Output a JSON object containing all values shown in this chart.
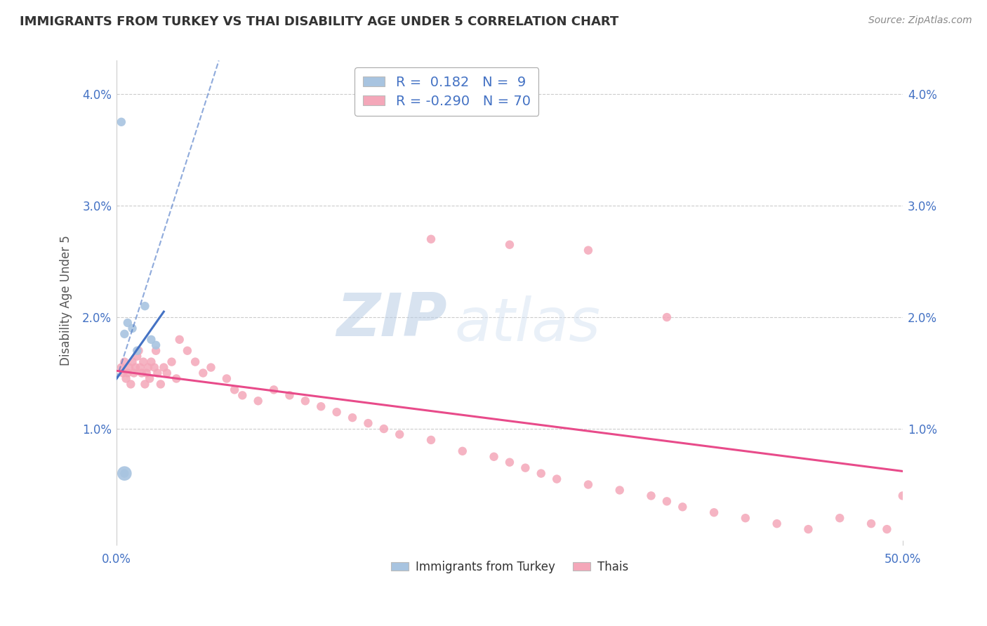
{
  "title": "IMMIGRANTS FROM TURKEY VS THAI DISABILITY AGE UNDER 5 CORRELATION CHART",
  "source": "Source: ZipAtlas.com",
  "ylabel": "Disability Age Under 5",
  "y_ticks": [
    0.0,
    1.0,
    2.0,
    3.0,
    4.0
  ],
  "y_tick_labels": [
    "",
    "1.0%",
    "2.0%",
    "3.0%",
    "4.0%"
  ],
  "x_lim": [
    0.0,
    50.0
  ],
  "y_lim": [
    0.0,
    4.3
  ],
  "legend_R1": "0.182",
  "legend_N1": "9",
  "legend_R2": "-0.290",
  "legend_N2": "70",
  "turkey_color": "#a8c4e0",
  "thai_color": "#f4a7b9",
  "turkey_line_color": "#4472c4",
  "thai_line_color": "#e84b8a",
  "watermark_zip": "ZIP",
  "watermark_atlas": "atlas",
  "turkey_x": [
    0.3,
    0.5,
    0.7,
    1.0,
    1.3,
    1.8,
    2.2,
    2.5,
    0.5
  ],
  "turkey_y": [
    3.75,
    1.85,
    1.95,
    1.9,
    1.7,
    2.1,
    1.8,
    1.75,
    0.6
  ],
  "turkey_dot_sizes": [
    80,
    80,
    80,
    80,
    80,
    80,
    80,
    80,
    200
  ],
  "thai_x": [
    0.3,
    0.4,
    0.5,
    0.6,
    0.7,
    0.8,
    0.9,
    1.0,
    1.1,
    1.2,
    1.3,
    1.4,
    1.5,
    1.6,
    1.7,
    1.8,
    1.9,
    2.0,
    2.1,
    2.2,
    2.4,
    2.5,
    2.6,
    2.8,
    3.0,
    3.2,
    3.5,
    3.8,
    4.0,
    4.5,
    5.0,
    5.5,
    6.0,
    7.0,
    7.5,
    8.0,
    9.0,
    10.0,
    11.0,
    12.0,
    13.0,
    14.0,
    15.0,
    16.0,
    17.0,
    18.0,
    20.0,
    22.0,
    24.0,
    25.0,
    26.0,
    27.0,
    28.0,
    30.0,
    32.0,
    34.0,
    35.0,
    36.0,
    38.0,
    40.0,
    42.0,
    44.0,
    46.0,
    48.0,
    49.0,
    50.0,
    20.0,
    25.0,
    30.0,
    35.0
  ],
  "thai_y": [
    1.55,
    1.5,
    1.6,
    1.45,
    1.5,
    1.55,
    1.4,
    1.6,
    1.5,
    1.55,
    1.65,
    1.7,
    1.55,
    1.5,
    1.6,
    1.4,
    1.5,
    1.55,
    1.45,
    1.6,
    1.55,
    1.7,
    1.5,
    1.4,
    1.55,
    1.5,
    1.6,
    1.45,
    1.8,
    1.7,
    1.6,
    1.5,
    1.55,
    1.45,
    1.35,
    1.3,
    1.25,
    1.35,
    1.3,
    1.25,
    1.2,
    1.15,
    1.1,
    1.05,
    1.0,
    0.95,
    0.9,
    0.8,
    0.75,
    0.7,
    0.65,
    0.6,
    0.55,
    0.5,
    0.45,
    0.4,
    0.35,
    0.3,
    0.25,
    0.2,
    0.15,
    0.1,
    0.2,
    0.15,
    0.1,
    0.4,
    2.7,
    2.65,
    2.6,
    2.0
  ],
  "thai_dot_sizes": [
    80,
    80,
    80,
    80,
    80,
    80,
    80,
    80,
    80,
    80,
    80,
    80,
    80,
    80,
    80,
    80,
    80,
    80,
    80,
    80,
    80,
    80,
    80,
    80,
    80,
    80,
    80,
    80,
    80,
    80,
    80,
    80,
    80,
    80,
    80,
    80,
    80,
    80,
    80,
    80,
    80,
    80,
    80,
    80,
    80,
    80,
    80,
    80,
    80,
    80,
    80,
    80,
    80,
    80,
    80,
    80,
    80,
    80,
    80,
    80,
    80,
    80,
    80,
    80,
    80,
    80,
    80,
    80,
    80,
    80
  ],
  "turkey_line_x0": 0.0,
  "turkey_line_y0": 1.45,
  "turkey_line_x1": 3.0,
  "turkey_line_y1": 2.05,
  "turkey_dashed_x0": 0.0,
  "turkey_dashed_y0": 1.45,
  "turkey_dashed_x1": 6.5,
  "turkey_dashed_y1": 4.3,
  "thai_line_x0": 0.0,
  "thai_line_y0": 1.52,
  "thai_line_x1": 50.0,
  "thai_line_y1": 0.62
}
